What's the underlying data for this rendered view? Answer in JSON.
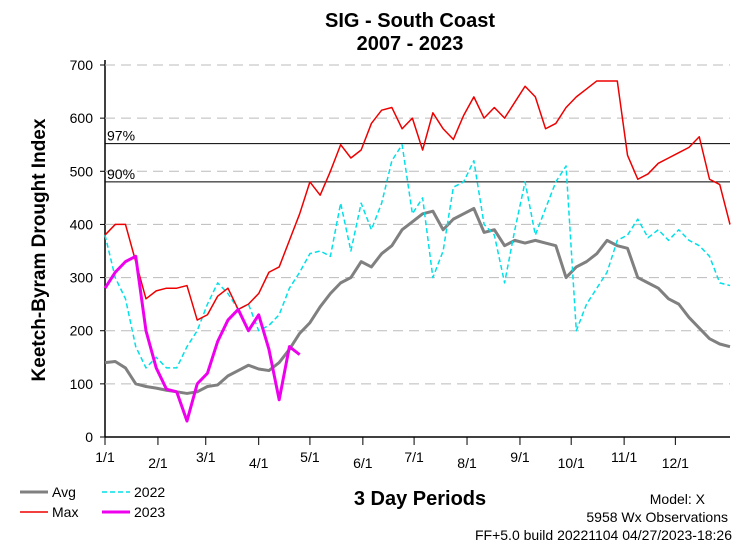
{
  "chart_data": {
    "type": "line",
    "title": "SIG - South Coast",
    "subtitle": "2007 - 2023",
    "ylabel": "Keetch-Byram Drought Index",
    "xlabel": "3 Day Periods",
    "annotations": [
      "Model: X",
      "5958 Wx Observations",
      "FF+5.0 build 20221104 04/27/2023-18:26"
    ],
    "x": [
      0,
      6,
      12,
      18,
      24,
      30,
      36,
      42,
      48,
      54,
      60,
      66,
      72,
      78,
      84,
      90,
      96,
      102,
      108,
      114,
      120,
      126,
      132,
      138,
      144,
      150,
      156,
      162,
      168,
      174,
      180,
      186,
      192,
      198,
      204,
      210,
      216,
      222,
      228,
      234,
      240,
      246,
      252,
      258,
      264,
      270,
      276,
      282,
      288,
      294,
      300,
      306,
      312,
      318,
      324,
      330,
      336,
      342,
      348,
      354,
      360,
      366
    ],
    "xlim": [
      0,
      366
    ],
    "xticks": [
      {
        "value": 0,
        "label": "1/1"
      },
      {
        "value": 31,
        "label": "2/1"
      },
      {
        "value": 59,
        "label": "3/1"
      },
      {
        "value": 90,
        "label": "4/1"
      },
      {
        "value": 120,
        "label": "5/1"
      },
      {
        "value": 151,
        "label": "6/1"
      },
      {
        "value": 181,
        "label": "7/1"
      },
      {
        "value": 212,
        "label": "8/1"
      },
      {
        "value": 243,
        "label": "9/1"
      },
      {
        "value": 273,
        "label": "10/1"
      },
      {
        "value": 304,
        "label": "11/1"
      },
      {
        "value": 334,
        "label": "12/1"
      }
    ],
    "ylim": [
      0,
      700
    ],
    "yticks": [
      0,
      100,
      200,
      300,
      400,
      500,
      600,
      700
    ],
    "grid": true,
    "reference_lines": [
      {
        "value": 552,
        "label": "97%"
      },
      {
        "value": 480,
        "label": "90%"
      }
    ],
    "series": [
      {
        "name": "Avg",
        "color": "#808080",
        "width": 3,
        "dashed": false,
        "values": [
          140,
          142,
          130,
          100,
          95,
          92,
          88,
          85,
          82,
          85,
          95,
          98,
          115,
          125,
          135,
          128,
          125,
          140,
          165,
          195,
          215,
          245,
          270,
          290,
          300,
          330,
          320,
          345,
          360,
          390,
          405,
          420,
          425,
          390,
          410,
          420,
          430,
          385,
          390,
          360,
          370,
          365,
          370,
          365,
          360,
          300,
          320,
          330,
          345,
          370,
          360,
          355,
          300,
          290,
          280,
          260,
          250,
          225,
          205,
          185,
          175,
          170
        ]
      },
      {
        "name": "2022",
        "color": "#00e0e8",
        "width": 1.5,
        "dashed": true,
        "values": [
          380,
          300,
          260,
          170,
          130,
          150,
          130,
          130,
          170,
          200,
          250,
          290,
          270,
          240,
          250,
          200,
          210,
          230,
          280,
          310,
          345,
          350,
          340,
          440,
          350,
          440,
          390,
          440,
          520,
          550,
          420,
          450,
          300,
          350,
          470,
          480,
          520,
          400,
          380,
          290,
          390,
          480,
          380,
          430,
          480,
          510,
          200,
          250,
          280,
          310,
          370,
          380,
          410,
          375,
          390,
          370,
          390,
          370,
          360,
          340,
          290,
          285
        ]
      },
      {
        "name": "Max",
        "color": "#ee0000",
        "width": 1.5,
        "dashed": false,
        "values": [
          380,
          400,
          400,
          330,
          260,
          275,
          280,
          280,
          285,
          220,
          230,
          265,
          280,
          240,
          250,
          270,
          310,
          320,
          370,
          420,
          480,
          455,
          500,
          550,
          525,
          540,
          590,
          615,
          620,
          580,
          600,
          540,
          610,
          580,
          560,
          605,
          640,
          600,
          620,
          600,
          630,
          660,
          640,
          580,
          590,
          620,
          640,
          655,
          670,
          670,
          670,
          530,
          485,
          495,
          515,
          525,
          535,
          545,
          565,
          485,
          475,
          400
        ]
      },
      {
        "name": "2023",
        "color": "#ee00ee",
        "width": 3,
        "dashed": false,
        "values": [
          280,
          310,
          330,
          340,
          200,
          130,
          90,
          85,
          30,
          100,
          120,
          180,
          220,
          240,
          200,
          230,
          165,
          70,
          170,
          155,
          null,
          null,
          null,
          null,
          null,
          null,
          null,
          null,
          null,
          null,
          null,
          null,
          null,
          null,
          null,
          null,
          null,
          null,
          null,
          null,
          null,
          null,
          null,
          null,
          null,
          null,
          null,
          null,
          null,
          null,
          null,
          null,
          null,
          null,
          null,
          null,
          null,
          null,
          null,
          null,
          null,
          null
        ]
      }
    ]
  }
}
